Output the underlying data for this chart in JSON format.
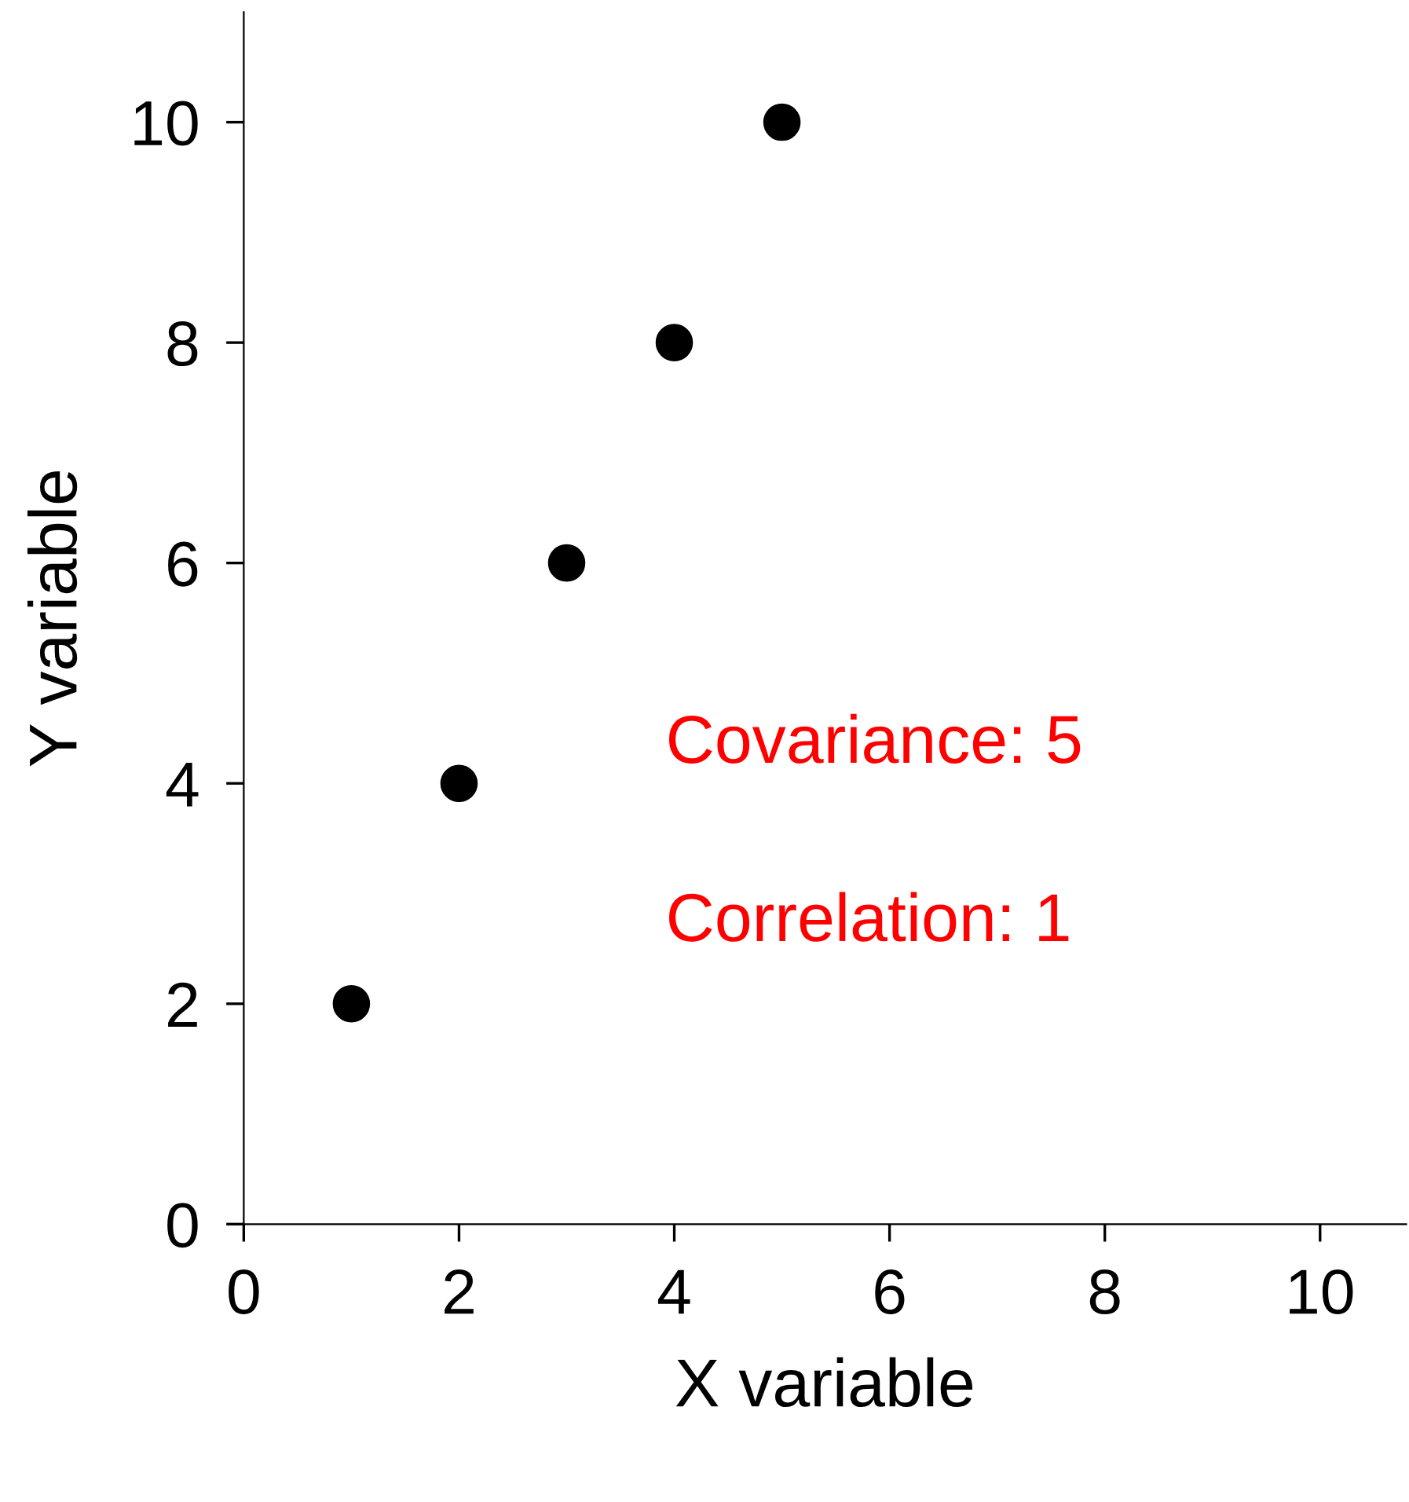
{
  "chart_data": {
    "type": "scatter",
    "xlabel": "X variable",
    "ylabel": "Y variable",
    "x": [
      1,
      2,
      3,
      4,
      5
    ],
    "series": [
      {
        "color": "#000000",
        "values": [
          2,
          4,
          6,
          8,
          10
        ]
      }
    ],
    "xlim": [
      0,
      10.8
    ],
    "ylim": [
      0,
      11
    ],
    "xticks": [
      0,
      2,
      4,
      6,
      8,
      10
    ],
    "yticks": [
      0,
      2,
      4,
      6,
      8,
      10
    ],
    "marker": "circle",
    "grid": false,
    "legend": false,
    "annotations": [
      "Covariance: 5",
      "Correlation: 1"
    ]
  }
}
